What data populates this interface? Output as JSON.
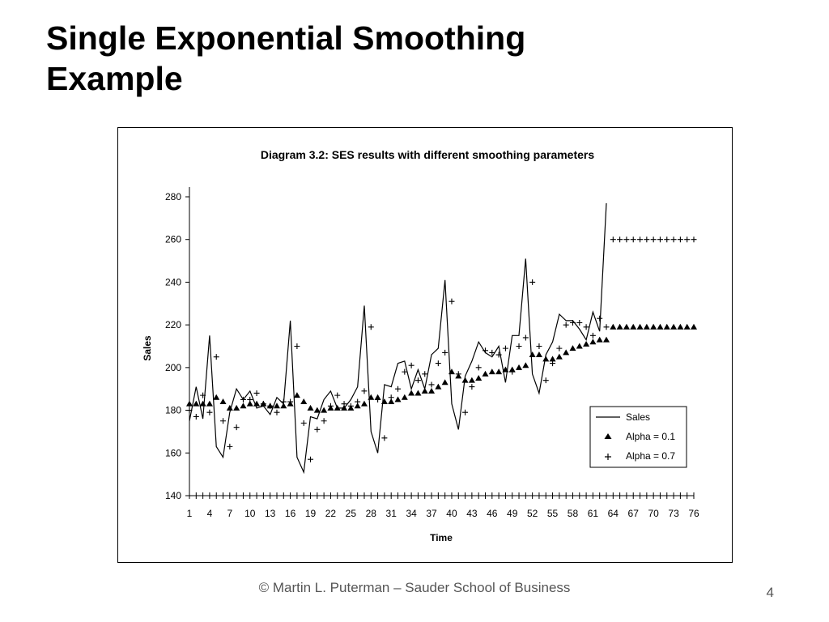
{
  "slide": {
    "title_line1": "Single Exponential Smoothing",
    "title_line2": "Example",
    "footer": "© Martin L. Puterman – Sauder School of Business",
    "page_number": "4"
  },
  "chart_data": {
    "type": "line",
    "title": "Diagram 3.2: SES results with different smoothing parameters",
    "xlabel": "Time",
    "ylabel": "Sales",
    "xlim": [
      1,
      76
    ],
    "ylim": [
      140,
      280
    ],
    "yticks": [
      140,
      160,
      180,
      200,
      220,
      240,
      260,
      280
    ],
    "xtick_labels": [
      1,
      4,
      7,
      10,
      13,
      16,
      19,
      22,
      25,
      28,
      31,
      34,
      37,
      40,
      43,
      46,
      49,
      52,
      55,
      58,
      61,
      64,
      67,
      70,
      73,
      76
    ],
    "legend_position": "lower-right",
    "series": [
      {
        "name": "Sales",
        "style": "line",
        "values": [
          175,
          191,
          176,
          215,
          163,
          158,
          179,
          190,
          185,
          189,
          181,
          182,
          178,
          186,
          183,
          222,
          158,
          151,
          177,
          176,
          185,
          189,
          181,
          181,
          185,
          191,
          229,
          170,
          160,
          192,
          191,
          202,
          203,
          190,
          199,
          190,
          206,
          209,
          241,
          183,
          171,
          196,
          203,
          212,
          207,
          205,
          210,
          193,
          215,
          215,
          251,
          197,
          188,
          206,
          212,
          225,
          222,
          222,
          218,
          213,
          226,
          217,
          277
        ]
      },
      {
        "name": "Alpha = 0.1",
        "style": "triangle",
        "values": [
          183,
          183,
          183,
          183,
          186,
          184,
          181,
          181,
          182,
          183,
          183,
          183,
          182,
          182,
          182,
          183,
          187,
          184,
          181,
          180,
          180,
          181,
          181,
          181,
          181,
          182,
          183,
          186,
          186,
          184,
          184,
          185,
          186,
          188,
          188,
          189,
          189,
          191,
          193,
          198,
          196,
          194,
          194,
          195,
          197,
          198,
          198,
          199,
          199,
          200,
          201,
          206,
          206,
          204,
          204,
          205,
          207,
          209,
          210,
          211,
          212,
          213,
          213,
          219,
          219,
          219,
          219,
          219,
          219,
          219,
          219,
          219,
          219,
          219,
          219,
          219
        ]
      },
      {
        "name": "Alpha = 0.7",
        "style": "plus",
        "values": [
          180,
          177,
          187,
          179,
          205,
          175,
          163,
          172,
          185,
          185,
          188,
          183,
          182,
          179,
          184,
          184,
          210,
          174,
          157,
          171,
          175,
          182,
          187,
          183,
          182,
          184,
          189,
          219,
          185,
          167,
          186,
          190,
          198,
          201,
          194,
          197,
          192,
          202,
          207,
          231,
          197,
          179,
          191,
          200,
          208,
          207,
          206,
          209,
          198,
          210,
          214,
          240,
          210,
          194,
          202,
          209,
          220,
          221,
          221,
          219,
          215,
          223,
          219,
          260,
          260,
          260,
          260,
          260,
          260,
          260,
          260,
          260,
          260,
          260,
          260,
          260
        ]
      }
    ]
  }
}
